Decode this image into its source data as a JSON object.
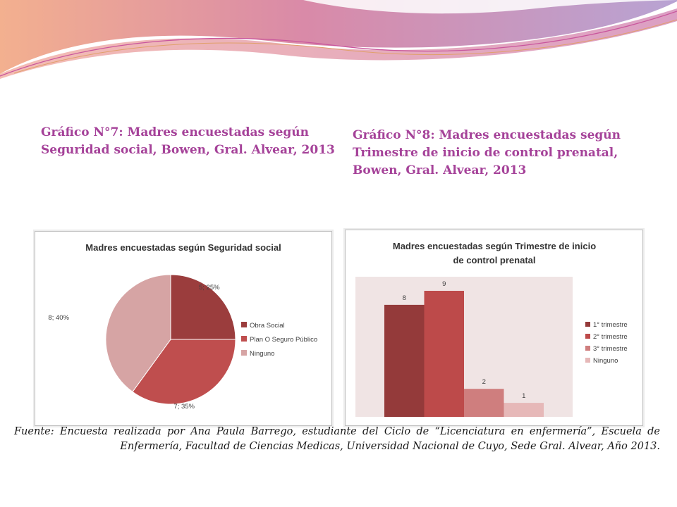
{
  "captions": {
    "left": "Gráfico N°7: Madres encuestadas según Seguridad social, Bowen, Gral. Alvear, 2013",
    "right": "Gráfico N°8: Madres encuestadas según Trimestre de inicio de control prenatal, Bowen, Gral. Alvear, 2013"
  },
  "source": "Fuente: Encuesta realizada por Ana Paula Barrego, estudiante del Ciclo de “Licenciatura en enfermería”, Escuela de Enfermería, Facultad de Ciencias Medicas, Universidad Nacional de Cuyo, Sede Gral. Alvear, Año 2013.",
  "chart_data": [
    {
      "type": "pie",
      "title": "Madres encuestadas según Seguridad social",
      "legend_position": "right",
      "slices": [
        {
          "label": "Obra Social",
          "value": 5,
          "percent": 25,
          "data_label": "5; 25%",
          "color": "#9b3d3d"
        },
        {
          "label": "Plan O Seguro Público",
          "value": 7,
          "percent": 35,
          "data_label": "7; 35%",
          "color": "#bf4e4e"
        },
        {
          "label": "Ninguno",
          "value": 8,
          "percent": 40,
          "data_label": "8; 40%",
          "color": "#d6a4a4"
        }
      ]
    },
    {
      "type": "bar",
      "title": [
        "Madres encuestadas según Trimestre de inicio",
        "de control prenatal"
      ],
      "legend_position": "right",
      "grid": false,
      "ylim": [
        0,
        9
      ],
      "series": [
        {
          "name": "1° trimestre",
          "value": 8,
          "color": "#943a3a"
        },
        {
          "name": "2° trimestre",
          "value": 9,
          "color": "#bd4a4a"
        },
        {
          "name": "3° trimestre",
          "value": 2,
          "color": "#cf7e7e"
        },
        {
          "name": "Ninguno",
          "value": 1,
          "color": "#e6b8b8"
        }
      ]
    }
  ]
}
